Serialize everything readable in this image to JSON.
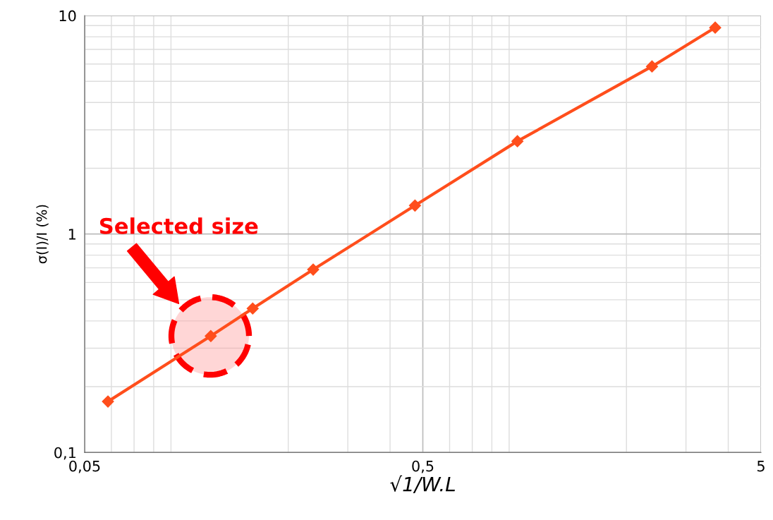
{
  "chart_data": {
    "type": "line",
    "xlabel": "√1/W.L",
    "ylabel": "σ(I)/I (%)",
    "x": [
      0.0586,
      0.118,
      0.157,
      0.237,
      0.474,
      0.952,
      2.38,
      3.66
    ],
    "series": [
      {
        "color": "#ff4e1c",
        "values": [
          0.171,
          0.341,
          0.456,
          0.687,
          1.35,
          2.66,
          5.85,
          8.81
        ]
      }
    ],
    "log": "xy",
    "xlim": [
      0.05,
      5
    ],
    "ylim": [
      0.1,
      10
    ],
    "xticks": [
      {
        "value": 0.05,
        "label": "0,05"
      },
      {
        "value": 0.5,
        "label": "0,5"
      },
      5
    ],
    "yticks": [
      {
        "value": 0.1,
        "label": "0,1"
      },
      1,
      10
    ],
    "grid": true,
    "marker": "diamond",
    "line_style": "solid",
    "legend": false,
    "annotations": [
      "Selected size"
    ]
  }
}
